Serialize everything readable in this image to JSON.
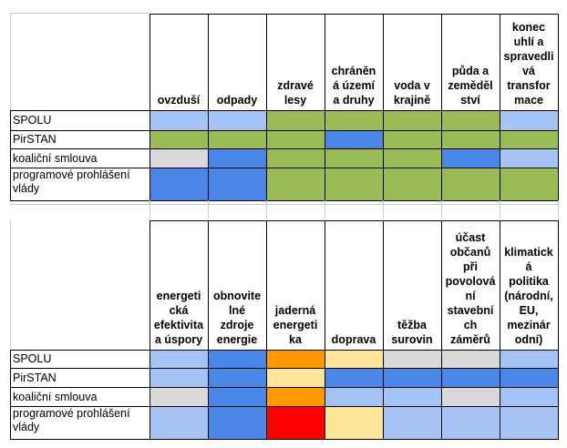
{
  "colors": {
    "light_blue": "#a4c2f4",
    "blue": "#4a86e8",
    "green": "#9bbb59",
    "grey": "#d9d9d9",
    "orange": "#ff9900",
    "pale_yellow": "#ffe599",
    "red": "#ff0000"
  },
  "table1": {
    "headers": [
      "ovzduší",
      "odpady",
      "zdravé lesy",
      "chráněn á území a druhy",
      "voda v krajině",
      "půda a zeměděl ství",
      "konec uhlí a spravedli vá transfor mace"
    ],
    "header_lines": [
      [
        "ovzduší"
      ],
      [
        "odpady"
      ],
      [
        "zdravé",
        "lesy"
      ],
      [
        "chráněn",
        "á území",
        "a druhy"
      ],
      [
        "voda v",
        "krajině"
      ],
      [
        "půda a",
        "zeměděl",
        "ství"
      ],
      [
        "konec",
        "uhlí a",
        "spravedli",
        "vá",
        "transfor",
        "mace"
      ]
    ],
    "rows": [
      {
        "label": "SPOLU",
        "cells": [
          "light_blue",
          "light_blue",
          "green",
          "green",
          "green",
          "green",
          "light_blue"
        ]
      },
      {
        "label": "PirSTAN",
        "cells": [
          "green",
          "green",
          "green",
          "blue",
          "green",
          "green",
          "green"
        ]
      },
      {
        "label": "koaliční smlouva",
        "cells": [
          "grey",
          "blue",
          "green",
          "green",
          "green",
          "blue",
          "light_blue"
        ]
      },
      {
        "label": "programové prohlášení vlády",
        "label_lines": [
          "programové prohlášení",
          "vlády"
        ],
        "cells": [
          "blue",
          "blue",
          "green",
          "green",
          "green",
          "green",
          "green"
        ]
      }
    ]
  },
  "table2": {
    "headers": [
      "energeti cká efektivita a úspory",
      "obnovite lné zdroje energie",
      "jaderná energeti ka",
      "doprava",
      "těžba surovin",
      "účast občanů při povolová ní stavební ch záměrů",
      "klimatick á politika (národní, EU, mezinár odní)"
    ],
    "header_lines": [
      [
        "energeti",
        "cká",
        "efektivita",
        "a úspory"
      ],
      [
        "obnovite",
        "lné",
        "zdroje",
        "energie"
      ],
      [
        "jaderná",
        "energeti",
        "ka"
      ],
      [
        "doprava"
      ],
      [
        "těžba",
        "surovin"
      ],
      [
        "účast",
        "občanů",
        "při",
        "povolová",
        "ní",
        "stavební",
        "ch",
        "záměrů"
      ],
      [
        "klimatick",
        "á",
        "politika",
        "(národní,",
        "EU,",
        "mezinár",
        "odní)"
      ]
    ],
    "rows": [
      {
        "label": "SPOLU",
        "cells": [
          "light_blue",
          "blue",
          "orange",
          "pale_yellow",
          "grey",
          "grey",
          "light_blue"
        ]
      },
      {
        "label": "PirSTAN",
        "cells": [
          "light_blue",
          "blue",
          "pale_yellow",
          "blue",
          "blue",
          "blue",
          "blue"
        ]
      },
      {
        "label": "koaliční smlouva",
        "cells": [
          "grey",
          "blue",
          "orange",
          "light_blue",
          "light_blue",
          "grey",
          "light_blue"
        ]
      },
      {
        "label": "programové prohlášení vlády",
        "label_lines": [
          "programové prohlášení",
          "vlády"
        ],
        "cells": [
          "light_blue",
          "blue",
          "red",
          "pale_yellow",
          "light_blue",
          "light_blue",
          "light_blue"
        ]
      }
    ]
  }
}
